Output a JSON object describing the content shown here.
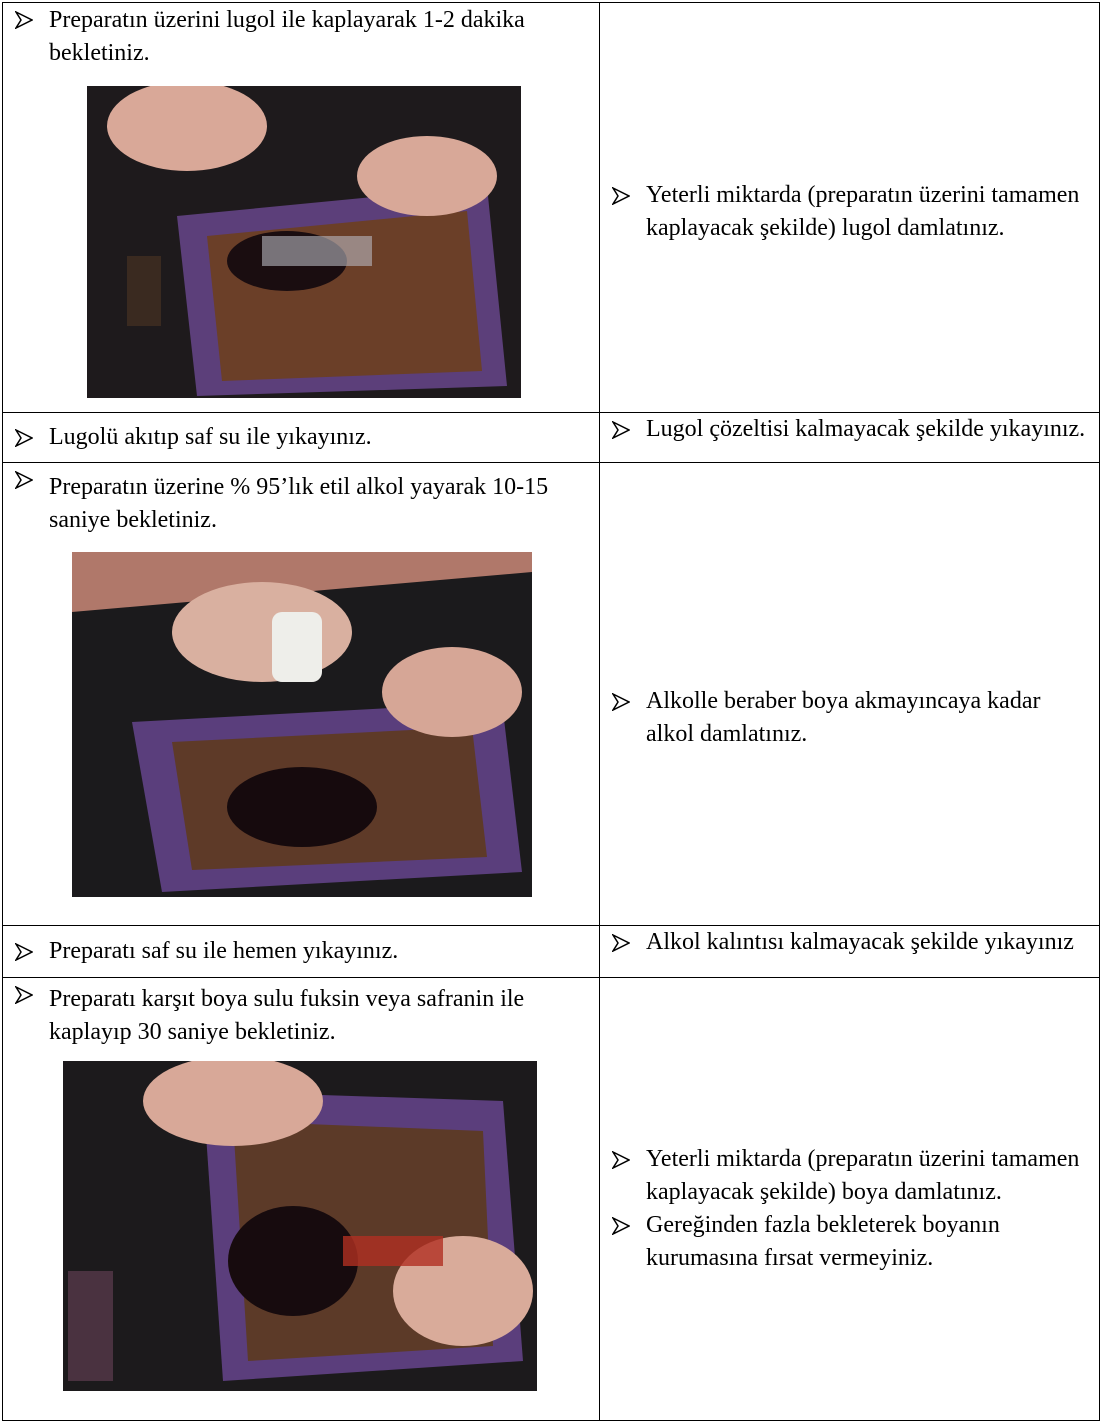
{
  "table": {
    "rows": [
      {
        "step": "Preparatın üzerini lugol ile kaplayarak 1-2 dakika bekletiniz.",
        "notes": [
          "Yeterli miktarda (preparatın üzerini tamamen kaplayacak şekilde) lugol damlatınız."
        ]
      },
      {
        "step": "Lugolü akıtıp saf su ile yıkayınız.",
        "notes": [
          "Lugol çözeltisi kalmayacak şekilde yıkayınız."
        ]
      },
      {
        "step": "Preparatın üzerine % 95’lık etil alkol yayarak 10-15 saniye bekletiniz.",
        "notes": [
          "Alkolle beraber boya akmayıncaya kadar alkol damlatınız."
        ]
      },
      {
        "step": "Preparatı saf su ile hemen yıkayınız.",
        "notes": [
          "Alkol kalıntısı kalmayacak şekilde yıkayınız"
        ]
      },
      {
        "step": "Preparatı karşıt boya sulu fuksin veya safranin ile kaplayıp 30 saniye bekletiniz.",
        "notes": [
          "Yeterli miktarda (preparatın üzerini tamamen kaplayacak şekilde) boya damlatınız.",
          "Gereğinden fazla bekleterek boyanın kurumasına fırsat vermeyiniz."
        ]
      }
    ]
  }
}
